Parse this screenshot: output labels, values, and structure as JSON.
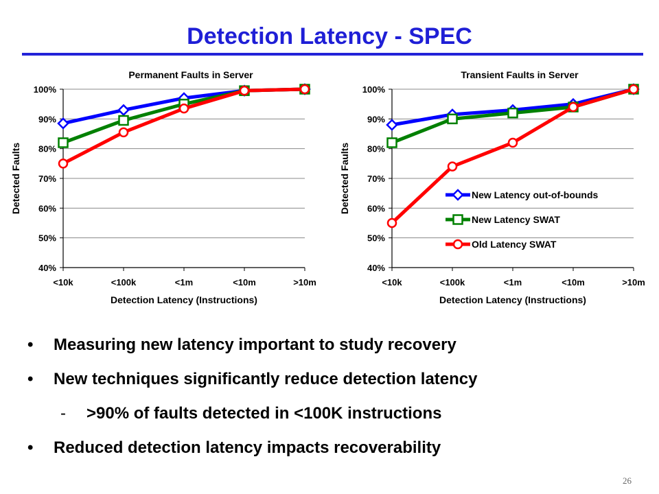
{
  "slide": {
    "title": "Detection Latency - SPEC",
    "page_number": "26"
  },
  "bullets": [
    {
      "marker": "•",
      "text": "Measuring new latency important to study recovery",
      "level": 1
    },
    {
      "marker": "•",
      "text": "New techniques significantly reduce detection latency",
      "level": 1
    },
    {
      "marker": "-",
      "text": ">90% of faults detected in <100K instructions",
      "level": 2
    },
    {
      "marker": "•",
      "text": "Reduced detection latency impacts recoverability",
      "level": 1
    }
  ],
  "chart_data": [
    {
      "type": "line",
      "title": "Permanent Faults in Server",
      "xlabel": "Detection Latency (Instructions)",
      "ylabel": "Detected Faults",
      "categories": [
        "<10k",
        "<100k",
        "<1m",
        "<10m",
        ">10m"
      ],
      "ylim": [
        40,
        100
      ],
      "yticks": [
        "40%",
        "50%",
        "60%",
        "70%",
        "80%",
        "90%",
        "100%"
      ],
      "grid": true,
      "legend": "none",
      "series": [
        {
          "name": "New Latency out-of-bounds",
          "color": "#0000ff",
          "marker": "diamond",
          "values": [
            88.5,
            93,
            97,
            99.5,
            100
          ]
        },
        {
          "name": "New Latency SWAT",
          "color": "#008000",
          "marker": "square",
          "values": [
            82,
            89.5,
            95,
            99.5,
            100
          ]
        },
        {
          "name": "Old Latency SWAT",
          "color": "#ff0000",
          "marker": "circle",
          "values": [
            75,
            85.5,
            93.5,
            99.5,
            100
          ]
        }
      ]
    },
    {
      "type": "line",
      "title": "Transient Faults in Server",
      "xlabel": "Detection Latency (Instructions)",
      "ylabel": "Detected Faults",
      "categories": [
        "<10k",
        "<100k",
        "<1m",
        "<10m",
        ">10m"
      ],
      "ylim": [
        40,
        100
      ],
      "yticks": [
        "40%",
        "50%",
        "60%",
        "70%",
        "80%",
        "90%",
        "100%"
      ],
      "grid": true,
      "legend": "inside-bottom-right",
      "series": [
        {
          "name": "New Latency out-of-bounds",
          "color": "#0000ff",
          "marker": "diamond",
          "values": [
            88,
            91.5,
            93,
            95,
            100
          ]
        },
        {
          "name": "New Latency SWAT",
          "color": "#008000",
          "marker": "square",
          "values": [
            82,
            90,
            92,
            94,
            100
          ]
        },
        {
          "name": "Old Latency SWAT",
          "color": "#ff0000",
          "marker": "circle",
          "values": [
            55,
            74,
            82,
            94,
            100
          ]
        }
      ]
    }
  ]
}
